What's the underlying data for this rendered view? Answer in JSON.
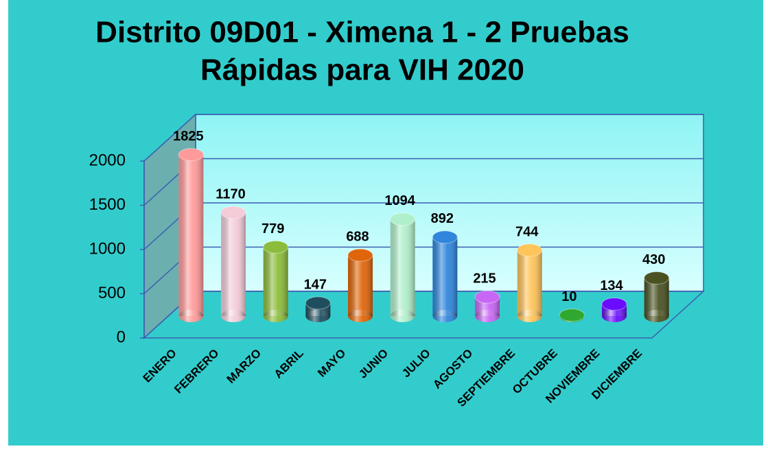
{
  "chart_data": {
    "type": "bar",
    "title": [
      "Distrito 09D01 - Ximena 1 - 2 Pruebas",
      "Rápidas para VIH 2020"
    ],
    "categories": [
      "ENERO",
      "FEBRERO",
      "MARZO",
      "ABRIL",
      "MAYO",
      "JUNIO",
      "JULIO",
      "AGOSTO",
      "SEPTIEMBRE",
      "OCTUBRE",
      "NOVIEMBRE",
      "DICIEMBRE"
    ],
    "values": [
      1825,
      1170,
      779,
      147,
      688,
      1094,
      892,
      215,
      744,
      10,
      134,
      430
    ],
    "colors": [
      "#ff9a9a",
      "#f3ccd8",
      "#8cbc3c",
      "#1f4e5f",
      "#e0650a",
      "#b0efcb",
      "#2f86dc",
      "#c866f5",
      "#ffc45a",
      "#2fa82f",
      "#6a0dff",
      "#4a5222"
    ],
    "ylim": [
      0,
      2000
    ],
    "yticks": [
      0,
      500,
      1000,
      1500,
      2000
    ],
    "grid": true
  }
}
